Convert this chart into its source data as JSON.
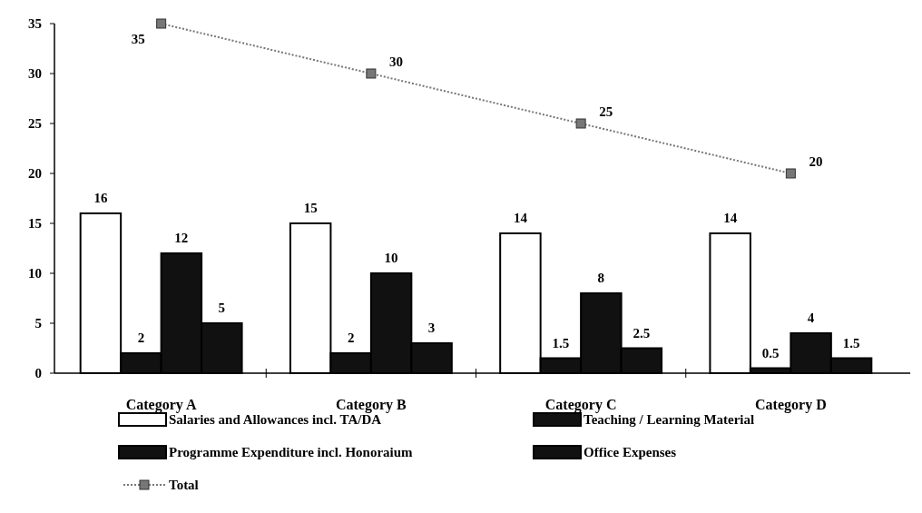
{
  "chart_data": {
    "type": "bar",
    "categories": [
      "Category A",
      "Category B",
      "Category C",
      "Category D"
    ],
    "series": [
      {
        "name": "Salaries and Allowances incl. TA/DA",
        "color": "#ffffff",
        "values": [
          16,
          15,
          14,
          14
        ]
      },
      {
        "name": "Teaching / Learning Material",
        "color": "#111111",
        "values": [
          2,
          2,
          1.5,
          0.5
        ]
      },
      {
        "name": "Programme Expenditure incl. Honoraium",
        "color": "#111111",
        "values": [
          12,
          10,
          8,
          4
        ]
      },
      {
        "name": "Office Expenses",
        "color": "#111111",
        "values": [
          5,
          3,
          2.5,
          1.5
        ]
      },
      {
        "name": "Total",
        "type": "line",
        "color": "#777777",
        "values": [
          35,
          30,
          25,
          20
        ]
      }
    ],
    "ylim": [
      0,
      35
    ],
    "yticks": [
      0,
      5,
      10,
      15,
      20,
      25,
      30,
      35
    ],
    "grid": false,
    "legend": "bottom",
    "data_labels": true,
    "marker": "square",
    "line_style": "dotted"
  }
}
